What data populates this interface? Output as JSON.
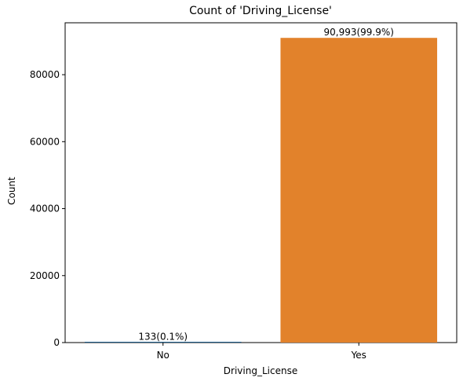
{
  "chart_data": {
    "type": "bar",
    "title": "Count of 'Driving_License'",
    "xlabel": "Driving_License",
    "ylabel": "Count",
    "categories": [
      "No",
      "Yes"
    ],
    "values": [
      133,
      90993
    ],
    "data_labels": [
      "133(0.1%)",
      "90,993(99.9%)"
    ],
    "colors": [
      "#1f5f8b",
      "#e2822b"
    ],
    "ylim": [
      0,
      95500
    ],
    "yticks": [
      0,
      20000,
      40000,
      60000,
      80000
    ],
    "ytick_labels": [
      "0",
      "20000",
      "40000",
      "60000",
      "80000"
    ],
    "grid": false,
    "legend": "none"
  }
}
